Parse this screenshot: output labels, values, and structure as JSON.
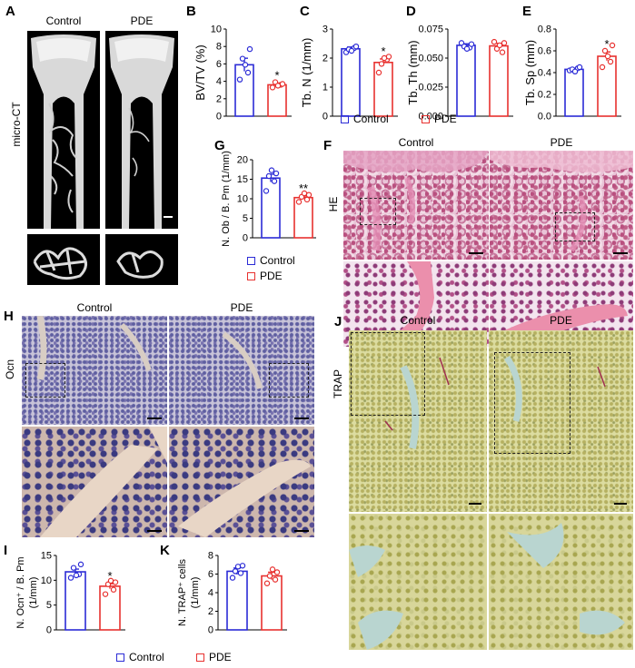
{
  "panels": {
    "A": {
      "label": "A",
      "col_left": "Control",
      "col_right": "PDE",
      "row_label": "micro-CT"
    },
    "B": {
      "label": "B"
    },
    "C": {
      "label": "C"
    },
    "D": {
      "label": "D"
    },
    "E": {
      "label": "E"
    },
    "F": {
      "label": "F",
      "col_left": "Control",
      "col_right": "PDE",
      "row_label": "HE"
    },
    "G": {
      "label": "G"
    },
    "H": {
      "label": "H",
      "col_left": "Control",
      "col_right": "PDE",
      "row_label": "Ocn"
    },
    "I": {
      "label": "I"
    },
    "J": {
      "label": "J",
      "col_left": "Control",
      "col_right": "PDE",
      "row_label": "TRAP"
    },
    "K": {
      "label": "K"
    }
  },
  "legend_top": {
    "control": "Control",
    "pde": "PDE"
  },
  "legend_g": {
    "control": "Control",
    "pde": "PDE"
  },
  "legend_bottom": {
    "control": "Control",
    "pde": "PDE"
  },
  "colors": {
    "control": "#2b2bd6",
    "pde": "#e8312f"
  },
  "chart_data": [
    {
      "id": "B",
      "type": "bar",
      "categories": [
        "Control",
        "PDE"
      ],
      "values": [
        5.9,
        3.6
      ],
      "points": [
        [
          4.2,
          5.0,
          6.6,
          7.7,
          5.9
        ],
        [
          3.3,
          3.6,
          3.9,
          3.7,
          3.5
        ]
      ],
      "errors": [
        0.75,
        0.2
      ],
      "ylabel": "BV/TV (%)",
      "ylim": [
        0,
        10
      ],
      "yticks": [
        "0",
        "2",
        "4",
        "6",
        "8",
        "10"
      ],
      "sig": "*"
    },
    {
      "id": "C",
      "type": "bar",
      "categories": [
        "Control",
        "PDE"
      ],
      "values": [
        2.32,
        1.85
      ],
      "points": [
        [
          2.2,
          2.35,
          2.3,
          2.4,
          2.25
        ],
        [
          1.5,
          1.95,
          1.8,
          2.05,
          2.0
        ]
      ],
      "errors": [
        0.06,
        0.12
      ],
      "ylabel": "Tb. N (1/mm)",
      "ylim": [
        0,
        3
      ],
      "yticks": [
        "0",
        "1",
        "2",
        "3"
      ],
      "sig": "*"
    },
    {
      "id": "D",
      "type": "bar",
      "categories": [
        "Control",
        "PDE"
      ],
      "values": [
        0.061,
        0.0605
      ],
      "points": [
        [
          0.063,
          0.059,
          0.06,
          0.062,
          0.058
        ],
        [
          0.064,
          0.055,
          0.058,
          0.063,
          0.061
        ]
      ],
      "errors": [
        0.0013,
        0.0022
      ],
      "ylabel": "Tb. Th (mm)",
      "ylim": [
        0,
        0.075
      ],
      "yticks": [
        "0.000",
        "0.025",
        "0.050",
        "0.075"
      ],
      "sig": ""
    },
    {
      "id": "E",
      "type": "bar",
      "categories": [
        "Control",
        "PDE"
      ],
      "values": [
        0.43,
        0.55
      ],
      "points": [
        [
          0.42,
          0.44,
          0.43,
          0.45,
          0.41
        ],
        [
          0.45,
          0.5,
          0.6,
          0.65,
          0.55
        ]
      ],
      "errors": [
        0.01,
        0.04
      ],
      "ylabel": "Tb. Sp (mm)",
      "ylim": [
        0,
        0.8
      ],
      "yticks": [
        "0.0",
        "0.2",
        "0.4",
        "0.6",
        "0.8"
      ],
      "sig": "*"
    },
    {
      "id": "G",
      "type": "bar",
      "categories": [
        "Control",
        "PDE"
      ],
      "values": [
        15.3,
        10.3
      ],
      "points": [
        [
          12.0,
          14.5,
          15.8,
          16.5,
          17.3
        ],
        [
          9.2,
          9.8,
          10.5,
          11.0,
          11.4
        ]
      ],
      "errors": [
        1.0,
        0.4
      ],
      "ylabel": "N. Ob / B. Pm (1/mm)",
      "ylim": [
        0,
        20
      ],
      "yticks": [
        "0",
        "5",
        "10",
        "15",
        "20"
      ],
      "sig": "**"
    },
    {
      "id": "I",
      "type": "bar",
      "categories": [
        "Control",
        "PDE"
      ],
      "values": [
        11.7,
        8.8
      ],
      "points": [
        [
          10.5,
          11.2,
          12.5,
          13.2,
          11.0
        ],
        [
          7.2,
          8.1,
          9.2,
          9.6,
          9.9
        ]
      ],
      "errors": [
        0.55,
        0.5
      ],
      "ylabel": "N. Ocn⁺ / B. Pm",
      "ylabel2": "(1/mm)",
      "ylim": [
        0,
        15
      ],
      "yticks": [
        "0",
        "5",
        "10",
        "15"
      ],
      "sig": "*"
    },
    {
      "id": "K",
      "type": "bar",
      "categories": [
        "Control",
        "PDE"
      ],
      "values": [
        6.3,
        5.8
      ],
      "points": [
        [
          5.6,
          6.1,
          6.3,
          6.9,
          6.8
        ],
        [
          5.0,
          5.4,
          5.8,
          6.2,
          6.5
        ]
      ],
      "errors": [
        0.35,
        0.4
      ],
      "ylabel": "N. TRAP⁺ cells",
      "ylabel2": "(1/mm)",
      "ylim": [
        0,
        8
      ],
      "yticks": [
        "0",
        "2",
        "4",
        "6",
        "8"
      ],
      "sig": ""
    }
  ]
}
